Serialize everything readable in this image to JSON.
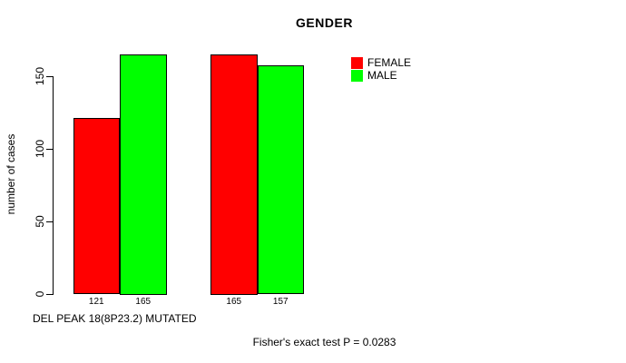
{
  "chart_data": {
    "type": "bar",
    "title": "GENDER",
    "xlabel": "DEL PEAK 18(8P23.2) MUTATED",
    "ylabel": "number of cases",
    "ylim": [
      0,
      172
    ],
    "yticks": [
      0,
      50,
      100,
      150
    ],
    "grid": false,
    "legend_position": "top-right-outside",
    "bar_border_color": "#000000",
    "show_bar_value_labels": true,
    "series": [
      {
        "name": "FEMALE",
        "color": "#ff0000",
        "values": [
          121,
          165
        ]
      },
      {
        "name": "MALE",
        "color": "#00ff00",
        "values": [
          165,
          157
        ]
      }
    ],
    "annotation": "Fisher's exact test P = 0.0283"
  }
}
